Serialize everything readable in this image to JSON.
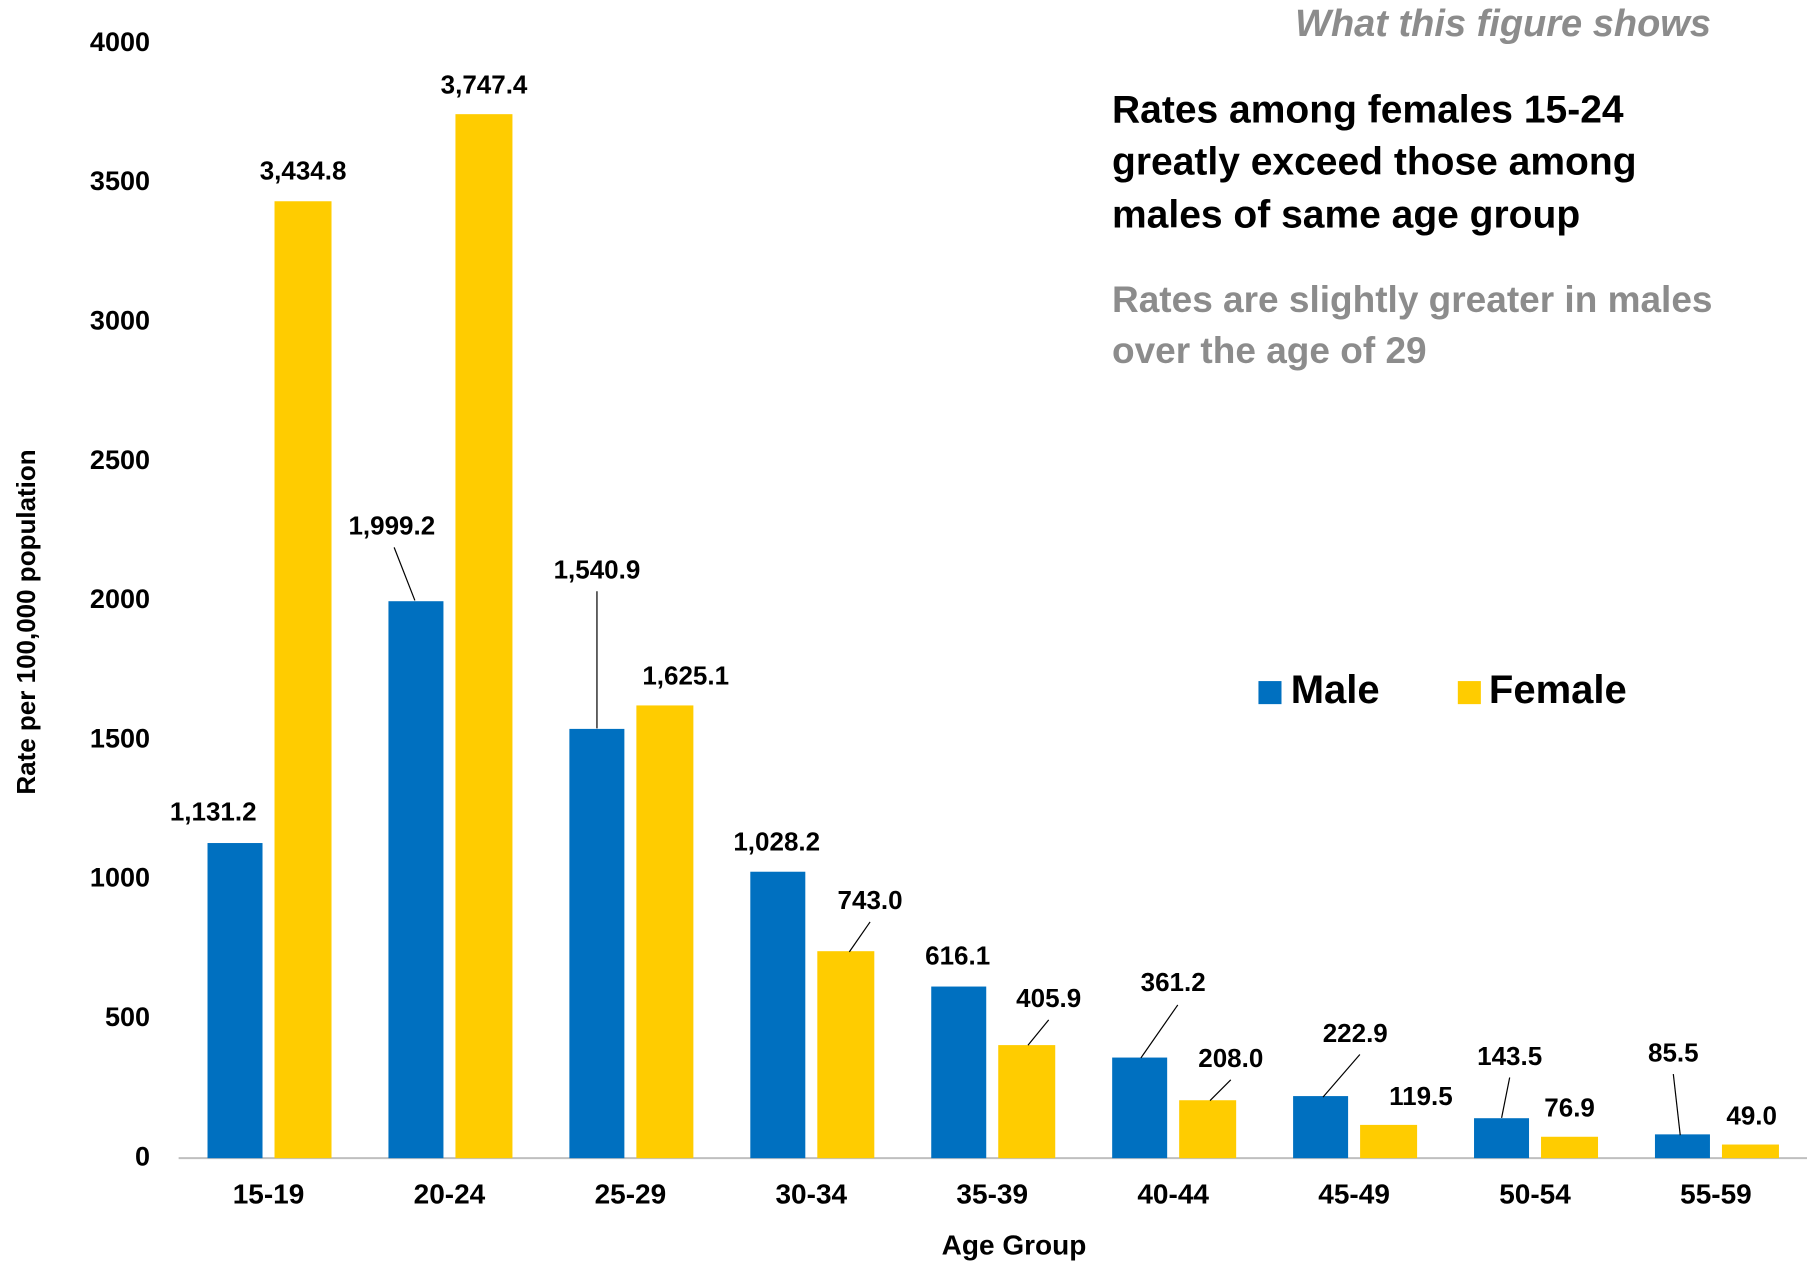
{
  "chart_data": {
    "type": "bar",
    "header": "What this figure shows",
    "headline": [
      "Rates among females 15-24",
      "greatly exceed those among",
      "males of same age group"
    ],
    "note": [
      "Rates are slightly greater in males",
      "over the age of 29"
    ],
    "x_label": "Age Group",
    "y_label": "Rate per 100,000 population",
    "categories": [
      "15-19",
      "20-24",
      "25-29",
      "30-34",
      "35-39",
      "40-44",
      "45-49",
      "50-54",
      "55-59"
    ],
    "series": [
      {
        "name": "Male",
        "color": "#0070c0",
        "values": [
          1131.2,
          1999.2,
          1540.9,
          1028.2,
          616.1,
          361.2,
          222.9,
          143.5,
          85.5
        ],
        "value_labels": [
          "1,131.2",
          "1,999.2",
          "1,540.9",
          "1,028.2",
          "616.1",
          "361.2",
          "222.9",
          "143.5",
          "85.5"
        ]
      },
      {
        "name": "Female",
        "color": "#ffcc00",
        "values": [
          3434.8,
          3747.4,
          1625.1,
          743.0,
          405.9,
          208.0,
          119.5,
          76.9,
          49.0
        ],
        "value_labels": [
          "3,434.8",
          "3,747.4",
          "1,625.1",
          "743.0",
          "405.9",
          "208.0",
          "119.5",
          "76.9",
          "49.0"
        ]
      }
    ],
    "ylim": [
      0,
      4000
    ],
    "yticks": [
      0,
      500,
      1000,
      1500,
      2000,
      2500,
      3000,
      3500,
      4000
    ],
    "grid": false,
    "legend": "right"
  }
}
